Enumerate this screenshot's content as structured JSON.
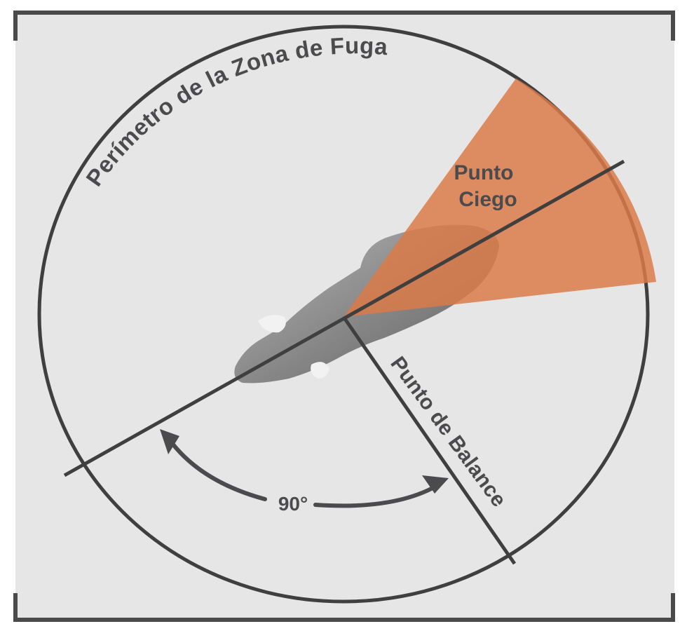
{
  "diagram": {
    "labels": {
      "flight_zone_perimeter": "Perímetro de la Zona de Fuga",
      "blind_spot_line1": "Punto",
      "blind_spot_line2": "Ciego",
      "balance_point": "Punto de Balance",
      "angle": "90°"
    },
    "colors": {
      "background": "#e6e6e6",
      "frame": "#4a4a4a",
      "line": "#3f3f3f",
      "blind_spot": "#db7a47",
      "text": "#4b4b4d",
      "animal": "#8c8c8c"
    }
  }
}
